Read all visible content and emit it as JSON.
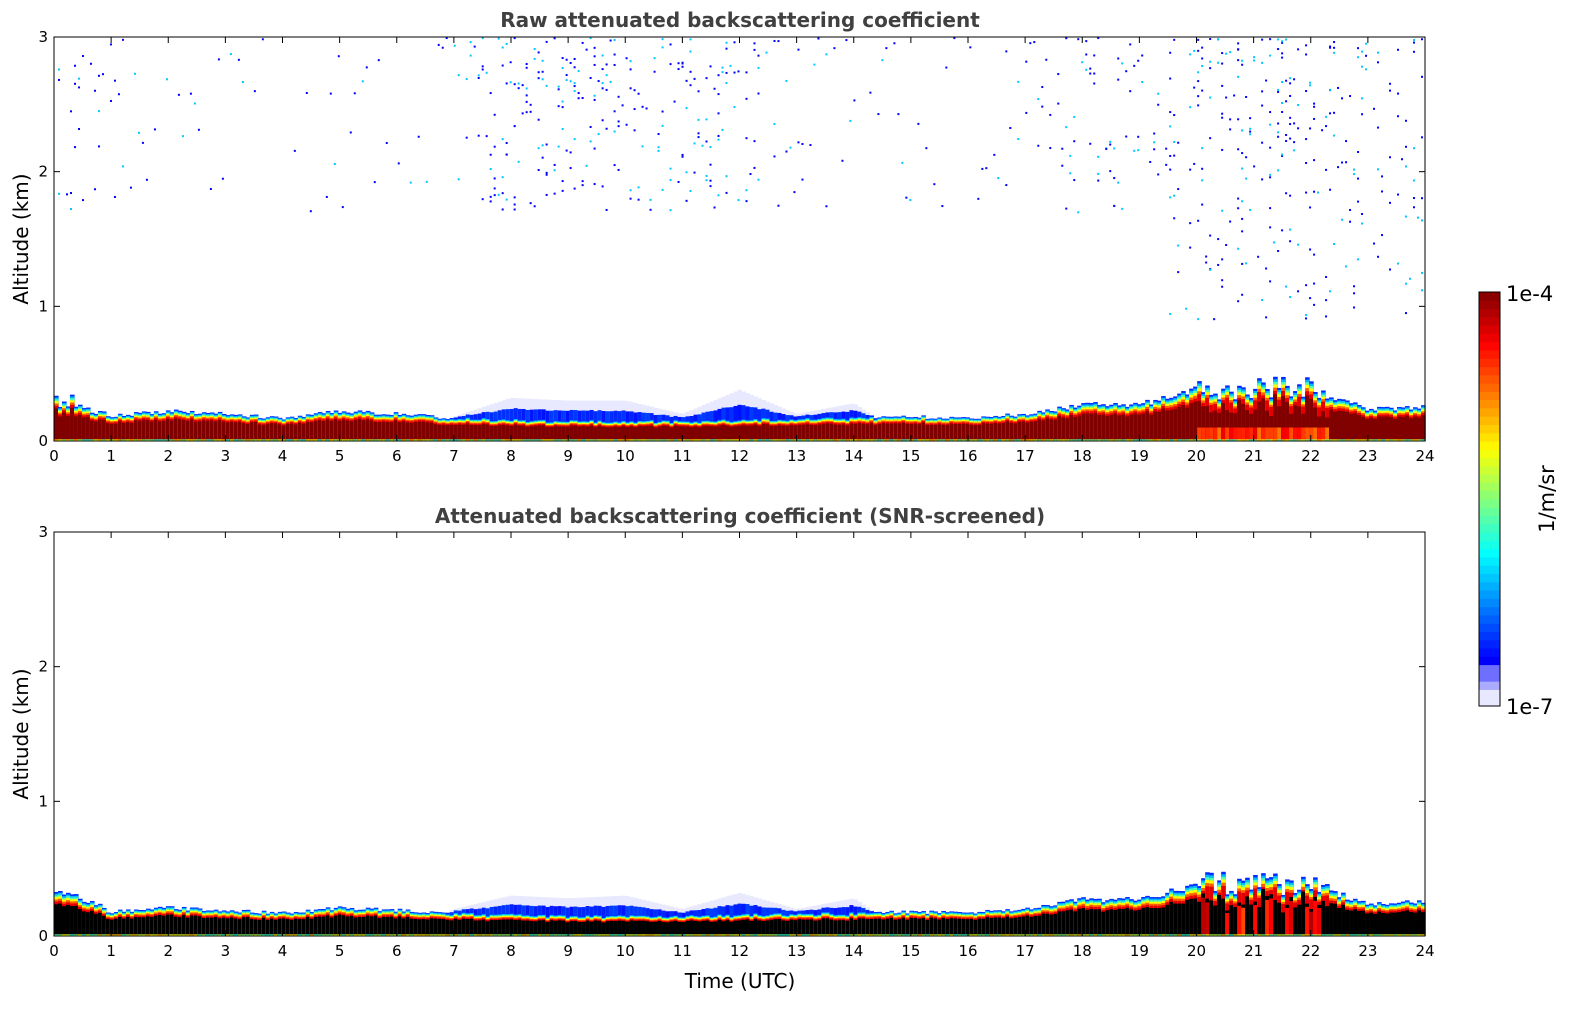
{
  "chart_data": [
    {
      "type": "heatmap",
      "title": "Raw attenuated backscattering coefficient",
      "xlabel": "",
      "ylabel": "Altitude (km)",
      "xlim": [
        0,
        24
      ],
      "ylim": [
        0,
        3
      ],
      "xticks": [
        "0",
        "1",
        "2",
        "3",
        "4",
        "5",
        "6",
        "7",
        "8",
        "9",
        "10",
        "11",
        "12",
        "13",
        "14",
        "15",
        "16",
        "17",
        "18",
        "19",
        "20",
        "21",
        "22",
        "23",
        "24"
      ],
      "yticks": [
        "0",
        "1",
        "2",
        "3"
      ],
      "core_color": "#800000",
      "hours": [
        0,
        1,
        2,
        3,
        4,
        5,
        6,
        7,
        8,
        9,
        10,
        11,
        12,
        13,
        14,
        15,
        16,
        17,
        18,
        19,
        20,
        21,
        22,
        23,
        24
      ],
      "layer_top_km": [
        0.33,
        0.19,
        0.22,
        0.2,
        0.17,
        0.22,
        0.2,
        0.17,
        0.16,
        0.15,
        0.15,
        0.15,
        0.16,
        0.17,
        0.17,
        0.18,
        0.17,
        0.2,
        0.27,
        0.27,
        0.38,
        0.4,
        0.38,
        0.24,
        0.25
      ],
      "haze_top_km": [
        0,
        0,
        0,
        0,
        0,
        0,
        0,
        0.18,
        0.32,
        0.3,
        0.3,
        0.2,
        0.38,
        0.2,
        0.28,
        0,
        0,
        0,
        0,
        0,
        0,
        0,
        0,
        0,
        0
      ],
      "noise_density_upper": [
        0.4,
        0.2,
        0.1,
        0.1,
        0.05,
        0.1,
        0.1,
        0.15,
        0.6,
        0.7,
        0.5,
        0.4,
        0.6,
        0.2,
        0.1,
        0.1,
        0.05,
        0.2,
        0.3,
        0.4,
        0.9,
        1.0,
        0.8,
        0.5,
        0.6
      ]
    },
    {
      "type": "heatmap",
      "title": "Attenuated backscattering coefficient (SNR-screened)",
      "xlabel": "Time (UTC)",
      "ylabel": "Altitude (km)",
      "xlim": [
        0,
        24
      ],
      "ylim": [
        0,
        3
      ],
      "xticks": [
        "0",
        "1",
        "2",
        "3",
        "4",
        "5",
        "6",
        "7",
        "8",
        "9",
        "10",
        "11",
        "12",
        "13",
        "14",
        "15",
        "16",
        "17",
        "18",
        "19",
        "20",
        "21",
        "22",
        "23",
        "24"
      ],
      "yticks": [
        "0",
        "1",
        "2",
        "3"
      ],
      "core_color": "#000000",
      "hours": [
        0,
        1,
        2,
        3,
        4,
        5,
        6,
        7,
        8,
        9,
        10,
        11,
        12,
        13,
        14,
        15,
        16,
        17,
        18,
        19,
        20,
        21,
        22,
        23,
        24
      ],
      "layer_top_km": [
        0.35,
        0.18,
        0.21,
        0.19,
        0.17,
        0.21,
        0.19,
        0.17,
        0.16,
        0.15,
        0.15,
        0.15,
        0.16,
        0.17,
        0.17,
        0.18,
        0.17,
        0.2,
        0.27,
        0.27,
        0.38,
        0.42,
        0.38,
        0.24,
        0.25
      ],
      "haze_top_km": [
        0,
        0,
        0,
        0,
        0,
        0,
        0,
        0.2,
        0.3,
        0.28,
        0.3,
        0.2,
        0.32,
        0.2,
        0.28,
        0,
        0,
        0,
        0,
        0,
        0,
        0,
        0,
        0,
        0
      ],
      "noise_density_upper": [
        0,
        0,
        0,
        0,
        0,
        0,
        0,
        0,
        0,
        0,
        0,
        0,
        0,
        0,
        0,
        0,
        0,
        0,
        0,
        0,
        0,
        0,
        0,
        0,
        0
      ]
    }
  ],
  "colorbar": {
    "max_label": "1e-4",
    "min_label": "1e-7",
    "unit_label": "1/m/sr",
    "scale": "log",
    "range": [
      1e-07,
      0.0001
    ]
  }
}
